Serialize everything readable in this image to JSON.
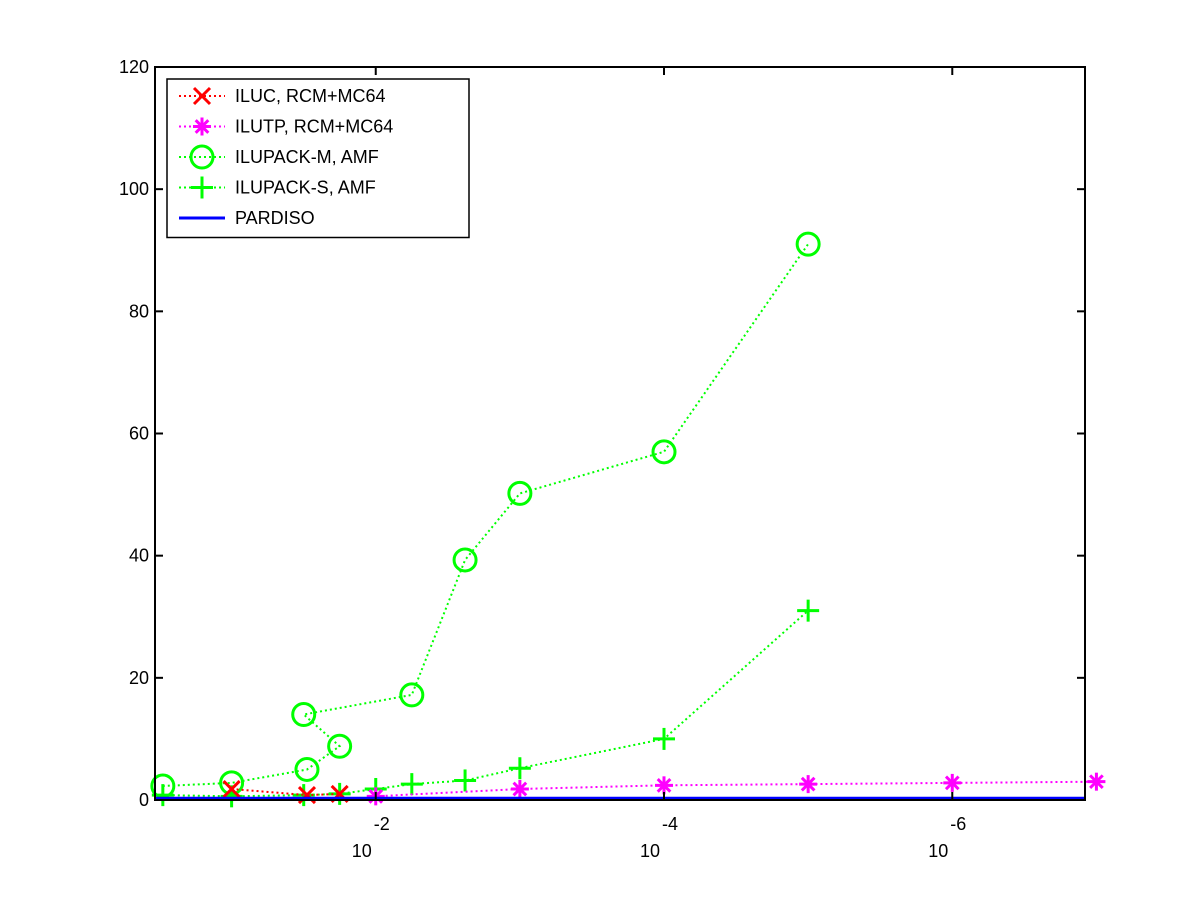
{
  "chart_data": {
    "type": "line",
    "title": "",
    "xlabel": "",
    "ylabel": "",
    "x_scale": "log",
    "x_reversed": true,
    "xlim": [
      0.34,
      1.2e-07
    ],
    "ylim": [
      0,
      120
    ],
    "grid": false,
    "legend_position": "top-left",
    "yticks": [
      0,
      20,
      40,
      60,
      80,
      100,
      120
    ],
    "xticks": [
      {
        "value": 0.01,
        "base": "10",
        "exponent": "-2"
      },
      {
        "value": 0.0001,
        "base": "10",
        "exponent": "-4"
      },
      {
        "value": 1e-06,
        "base": "10",
        "exponent": "-6"
      }
    ],
    "series": [
      {
        "name": "ILUC, RCM+MC64",
        "color": "#ff0000",
        "marker": "x",
        "linestyle": "dotted",
        "x": [
          0.1,
          0.03,
          0.0178
        ],
        "y": [
          1.8,
          0.8,
          1.0
        ]
      },
      {
        "name": "ILUTP, RCM+MC64",
        "color": "#ff00ff",
        "marker": "asterisk",
        "linestyle": "dotted",
        "x": [
          0.01,
          0.001,
          0.0001,
          1e-05,
          1e-06,
          1e-07
        ],
        "y": [
          0.6,
          1.8,
          2.4,
          2.6,
          2.8,
          3.0
        ]
      },
      {
        "name": "ILUPACK-M, AMF",
        "color": "#00ff00",
        "marker": "o",
        "linestyle": "dotted",
        "x": [
          0.3,
          0.1,
          0.03,
          0.0178,
          0.0316,
          0.00562,
          0.0024,
          0.001,
          0.0001,
          1e-05
        ],
        "y": [
          2.3,
          2.8,
          5.0,
          8.8,
          14.0,
          17.2,
          39.3,
          50.2,
          57.0,
          91.0
        ],
        "x_note": ""
      },
      {
        "name": "ILUPACK-S, AMF",
        "color": "#00ff00",
        "marker": "+",
        "linestyle": "dotted",
        "x": [
          0.3,
          0.1,
          0.0316,
          0.0178,
          0.01,
          0.00562,
          0.0024,
          0.001,
          0.0001,
          1e-05
        ],
        "y": [
          0.8,
          0.6,
          0.8,
          1.0,
          1.8,
          2.6,
          3.2,
          5.2,
          10.0,
          31.0
        ]
      },
      {
        "name": "PARDISO",
        "color": "#0000ff",
        "marker": "none",
        "linestyle": "solid",
        "x": [
          0.34,
          1.2e-07
        ],
        "y": [
          0.3,
          0.3
        ]
      }
    ]
  }
}
